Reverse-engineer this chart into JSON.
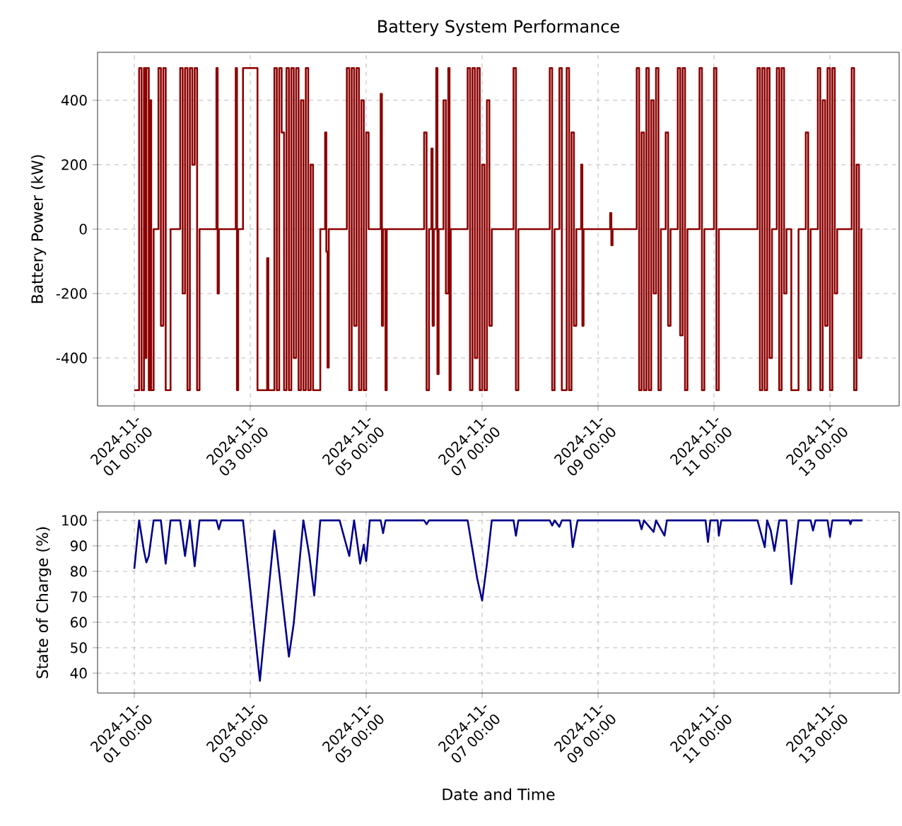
{
  "chart_data": [
    {
      "type": "step",
      "title": "Battery System Performance",
      "ylabel": "Battery Power (kW)",
      "color": "#8b0000",
      "grid": true,
      "xlim": [
        "2024-10-31T08:47",
        "2024-11-14T04:40"
      ],
      "ylim": [
        -549,
        549
      ],
      "yticks": [
        -400,
        -200,
        0,
        200,
        400
      ],
      "xticks": [
        {
          "value": "2024-11-01T00:00",
          "label": "2024-11-01 00:00"
        },
        {
          "value": "2024-11-03T00:00",
          "label": "2024-11-03 00:00"
        },
        {
          "value": "2024-11-05T00:00",
          "label": "2024-11-05 00:00"
        },
        {
          "value": "2024-11-07T00:00",
          "label": "2024-11-07 00:00"
        },
        {
          "value": "2024-11-09T00:00",
          "label": "2024-11-09 00:00"
        },
        {
          "value": "2024-11-11T00:00",
          "label": "2024-11-11 00:00"
        },
        {
          "value": "2024-11-13T00:00",
          "label": "2024-11-13 00:00"
        }
      ],
      "x": [
        "2024-11-01T00:00",
        "2024-11-01T02:00",
        "2024-11-01T03:00",
        "2024-11-01T04:00",
        "2024-11-01T04:30",
        "2024-11-01T05:00",
        "2024-11-01T06:00",
        "2024-11-01T06:30",
        "2024-11-01T07:00",
        "2024-11-01T08:00",
        "2024-11-01T10:00",
        "2024-11-01T11:00",
        "2024-11-01T12:00",
        "2024-11-01T13:00",
        "2024-11-01T15:00",
        "2024-11-01T19:00",
        "2024-11-01T20:00",
        "2024-11-01T21:00",
        "2024-11-01T22:00",
        "2024-11-01T23:00",
        "2024-11-02T00:00",
        "2024-11-02T01:00",
        "2024-11-02T02:00",
        "2024-11-02T03:00",
        "2024-11-02T10:00",
        "2024-11-02T10:30",
        "2024-11-02T11:00",
        "2024-11-02T18:00",
        "2024-11-02T18:30",
        "2024-11-02T19:00",
        "2024-11-02T21:00",
        "2024-11-03T03:00",
        "2024-11-03T07:00",
        "2024-11-03T07:30",
        "2024-11-03T10:00",
        "2024-11-03T11:00",
        "2024-11-03T12:00",
        "2024-11-03T13:00",
        "2024-11-03T14:00",
        "2024-11-03T15:00",
        "2024-11-03T16:00",
        "2024-11-03T17:00",
        "2024-11-03T18:00",
        "2024-11-03T19:00",
        "2024-11-03T20:00",
        "2024-11-03T21:00",
        "2024-11-03T22:00",
        "2024-11-03T23:00",
        "2024-11-04T00:00",
        "2024-11-04T01:00",
        "2024-11-04T02:00",
        "2024-11-04T05:00",
        "2024-11-04T07:00",
        "2024-11-04T07:30",
        "2024-11-04T08:00",
        "2024-11-04T08:30",
        "2024-11-04T16:00",
        "2024-11-04T17:00",
        "2024-11-04T18:00",
        "2024-11-04T19:00",
        "2024-11-04T20:00",
        "2024-11-04T21:00",
        "2024-11-04T22:00",
        "2024-11-04T23:00",
        "2024-11-05T00:00",
        "2024-11-05T01:00",
        "2024-11-05T06:00",
        "2024-11-05T06:30",
        "2024-11-05T07:00",
        "2024-11-05T08:00",
        "2024-11-05T08:30",
        "2024-11-06T00:00",
        "2024-11-06T01:00",
        "2024-11-06T02:00",
        "2024-11-06T03:00",
        "2024-11-06T03:30",
        "2024-11-06T04:00",
        "2024-11-06T05:00",
        "2024-11-06T05:30",
        "2024-11-06T06:00",
        "2024-11-06T08:00",
        "2024-11-06T09:00",
        "2024-11-06T10:00",
        "2024-11-06T10:30",
        "2024-11-06T11:00",
        "2024-11-06T18:00",
        "2024-11-06T19:00",
        "2024-11-06T20:00",
        "2024-11-06T21:00",
        "2024-11-06T22:00",
        "2024-11-06T23:00",
        "2024-11-07T00:00",
        "2024-11-07T01:00",
        "2024-11-07T02:00",
        "2024-11-07T03:00",
        "2024-11-07T04:00",
        "2024-11-07T13:00",
        "2024-11-07T14:00",
        "2024-11-07T15:00",
        "2024-11-08T04:00",
        "2024-11-08T05:00",
        "2024-11-08T06:00",
        "2024-11-08T08:00",
        "2024-11-08T09:00",
        "2024-11-08T11:00",
        "2024-11-08T12:00",
        "2024-11-08T13:00",
        "2024-11-08T14:00",
        "2024-11-08T15:00",
        "2024-11-08T17:00",
        "2024-11-08T17:30",
        "2024-11-08T18:00",
        "2024-11-09T05:00",
        "2024-11-09T05:30",
        "2024-11-09T06:00",
        "2024-11-09T16:00",
        "2024-11-09T17:00",
        "2024-11-09T18:00",
        "2024-11-09T19:00",
        "2024-11-09T20:00",
        "2024-11-09T21:00",
        "2024-11-09T22:00",
        "2024-11-09T23:00",
        "2024-11-10T00:00",
        "2024-11-10T01:00",
        "2024-11-10T02:00",
        "2024-11-10T04:00",
        "2024-11-10T05:00",
        "2024-11-10T06:00",
        "2024-11-10T09:00",
        "2024-11-10T10:00",
        "2024-11-10T11:00",
        "2024-11-10T12:00",
        "2024-11-10T13:00",
        "2024-11-10T18:00",
        "2024-11-10T19:00",
        "2024-11-10T20:00",
        "2024-11-11T00:00",
        "2024-11-11T01:00",
        "2024-11-11T02:00",
        "2024-11-11T18:00",
        "2024-11-11T19:00",
        "2024-11-11T20:00",
        "2024-11-11T21:00",
        "2024-11-11T22:00",
        "2024-11-11T23:00",
        "2024-11-12T00:00",
        "2024-11-12T02:00",
        "2024-11-12T03:00",
        "2024-11-12T04:00",
        "2024-11-12T05:00",
        "2024-11-12T06:00",
        "2024-11-12T08:00",
        "2024-11-12T11:00",
        "2024-11-12T14:00",
        "2024-11-12T15:00",
        "2024-11-12T16:00",
        "2024-11-12T19:00",
        "2024-11-12T20:00",
        "2024-11-12T21:00",
        "2024-11-12T22:00",
        "2024-11-12T23:00",
        "2024-11-13T00:00",
        "2024-11-13T01:00",
        "2024-11-13T02:00",
        "2024-11-13T03:00",
        "2024-11-13T09:00",
        "2024-11-13T10:00",
        "2024-11-13T11:00",
        "2024-11-13T12:00",
        "2024-11-13T13:00",
        "2024-11-13T13:30"
      ],
      "values": [
        -500,
        500,
        -500,
        500,
        -400,
        500,
        -500,
        400,
        -500,
        0,
        500,
        -300,
        500,
        -500,
        0,
        500,
        -200,
        500,
        -500,
        500,
        200,
        500,
        -500,
        0,
        500,
        -200,
        0,
        500,
        -500,
        0,
        500,
        -500,
        -90,
        -500,
        500,
        -500,
        500,
        300,
        -500,
        500,
        -500,
        500,
        -400,
        500,
        -500,
        400,
        -500,
        500,
        -500,
        200,
        -500,
        0,
        300,
        -70,
        -430,
        0,
        500,
        -500,
        500,
        -300,
        500,
        -500,
        400,
        -500,
        300,
        0,
        420,
        -300,
        0,
        -500,
        0,
        300,
        -500,
        0,
        250,
        -300,
        0,
        500,
        -450,
        0,
        400,
        -200,
        500,
        -500,
        0,
        500,
        -500,
        500,
        -400,
        500,
        -500,
        200,
        -500,
        400,
        -300,
        0,
        500,
        -500,
        0,
        500,
        -500,
        0,
        500,
        -500,
        500,
        -500,
        300,
        -300,
        0,
        200,
        -300,
        0,
        50,
        -50,
        0,
        500,
        -500,
        300,
        -500,
        500,
        -500,
        400,
        -200,
        500,
        -500,
        0,
        300,
        -300,
        0,
        500,
        -330,
        500,
        -500,
        0,
        500,
        -500,
        0,
        500,
        -500,
        0,
        500,
        -500,
        500,
        -500,
        500,
        -400,
        0,
        500,
        -500,
        500,
        -200,
        0,
        -500,
        0,
        300,
        -500,
        0,
        500,
        -500,
        400,
        -300,
        500,
        -500,
        500,
        -200,
        0,
        500,
        -500,
        200,
        -400,
        0,
        0
      ]
    },
    {
      "type": "line",
      "xlabel": "Date and Time",
      "ylabel": "State of Charge (%)",
      "color": "#00008b",
      "grid": true,
      "xlim": [
        "2024-10-31T08:47",
        "2024-11-14T04:40"
      ],
      "ylim": [
        32.2,
        103.3
      ],
      "yticks": [
        40,
        50,
        60,
        70,
        80,
        90,
        100
      ],
      "xticks": [
        {
          "value": "2024-11-01T00:00",
          "label": "2024-11-01 00:00"
        },
        {
          "value": "2024-11-03T00:00",
          "label": "2024-11-03 00:00"
        },
        {
          "value": "2024-11-05T00:00",
          "label": "2024-11-05 00:00"
        },
        {
          "value": "2024-11-07T00:00",
          "label": "2024-11-07 00:00"
        },
        {
          "value": "2024-11-09T00:00",
          "label": "2024-11-09 00:00"
        },
        {
          "value": "2024-11-11T00:00",
          "label": "2024-11-11 00:00"
        },
        {
          "value": "2024-11-13T00:00",
          "label": "2024-11-13 00:00"
        }
      ],
      "x": [
        "2024-11-01T00:00",
        "2024-11-01T02:00",
        "2024-11-01T04:00",
        "2024-11-01T05:00",
        "2024-11-01T06:00",
        "2024-11-01T08:00",
        "2024-11-01T11:00",
        "2024-11-01T13:00",
        "2024-11-01T15:00",
        "2024-11-01T19:00",
        "2024-11-01T21:00",
        "2024-11-01T23:00",
        "2024-11-02T01:00",
        "2024-11-02T03:00",
        "2024-11-02T10:00",
        "2024-11-02T11:00",
        "2024-11-02T12:00",
        "2024-11-02T21:00",
        "2024-11-03T04:00",
        "2024-11-03T10:00",
        "2024-11-03T16:00",
        "2024-11-03T18:00",
        "2024-11-03T22:00",
        "2024-11-04T00:30",
        "2024-11-04T02:30",
        "2024-11-04T05:00",
        "2024-11-04T13:00",
        "2024-11-04T17:00",
        "2024-11-04T19:00",
        "2024-11-04T21:30",
        "2024-11-04T23:00",
        "2024-11-05T00:00",
        "2024-11-05T01:30",
        "2024-11-05T06:00",
        "2024-11-05T07:00",
        "2024-11-05T08:00",
        "2024-11-06T00:00",
        "2024-11-06T01:00",
        "2024-11-06T02:00",
        "2024-11-06T18:00",
        "2024-11-06T22:00",
        "2024-11-07T00:00",
        "2024-11-07T02:00",
        "2024-11-07T04:00",
        "2024-11-07T13:00",
        "2024-11-07T14:00",
        "2024-11-07T15:00",
        "2024-11-08T04:00",
        "2024-11-08T05:00",
        "2024-11-08T06:00",
        "2024-11-08T08:00",
        "2024-11-08T09:00",
        "2024-11-08T12:30",
        "2024-11-08T13:30",
        "2024-11-08T15:30",
        "2024-11-09T17:00",
        "2024-11-09T18:00",
        "2024-11-09T19:00",
        "2024-11-09T23:00",
        "2024-11-10T00:00",
        "2024-11-10T03:30",
        "2024-11-10T04:30",
        "2024-11-10T20:30",
        "2024-11-10T21:30",
        "2024-11-10T22:30",
        "2024-11-11T01:30",
        "2024-11-11T02:00",
        "2024-11-11T03:00",
        "2024-11-11T18:00",
        "2024-11-11T21:00",
        "2024-11-11T22:00",
        "2024-11-11T23:30",
        "2024-11-12T01:00",
        "2024-11-12T03:00",
        "2024-11-12T06:00",
        "2024-11-12T08:00",
        "2024-11-12T11:00",
        "2024-11-12T16:00",
        "2024-11-12T17:00",
        "2024-11-12T18:00",
        "2024-11-12T23:00",
        "2024-11-13T00:00",
        "2024-11-13T01:00",
        "2024-11-13T08:00",
        "2024-11-13T08:30",
        "2024-11-13T09:00",
        "2024-11-13T13:30"
      ],
      "values": [
        81,
        100,
        88,
        83.5,
        86,
        100,
        100,
        83,
        100,
        100,
        86,
        100,
        82,
        100,
        100,
        96.5,
        100,
        100,
        37,
        96,
        46.5,
        59.5,
        100,
        86,
        70.5,
        100,
        100,
        86,
        100,
        83,
        90.5,
        84,
        100,
        100,
        95,
        100,
        100,
        98.5,
        100,
        100,
        77,
        68.5,
        83,
        100,
        100,
        94,
        100,
        100,
        98,
        100,
        97.5,
        100,
        100,
        89.5,
        100,
        100,
        96.5,
        100,
        95.5,
        100,
        94,
        100,
        100,
        91.5,
        100,
        100,
        94,
        100,
        100,
        89.5,
        100,
        96,
        88,
        100,
        100,
        75,
        100,
        100,
        96,
        100,
        100,
        93.5,
        100,
        100,
        98.5,
        100,
        100
      ]
    }
  ]
}
